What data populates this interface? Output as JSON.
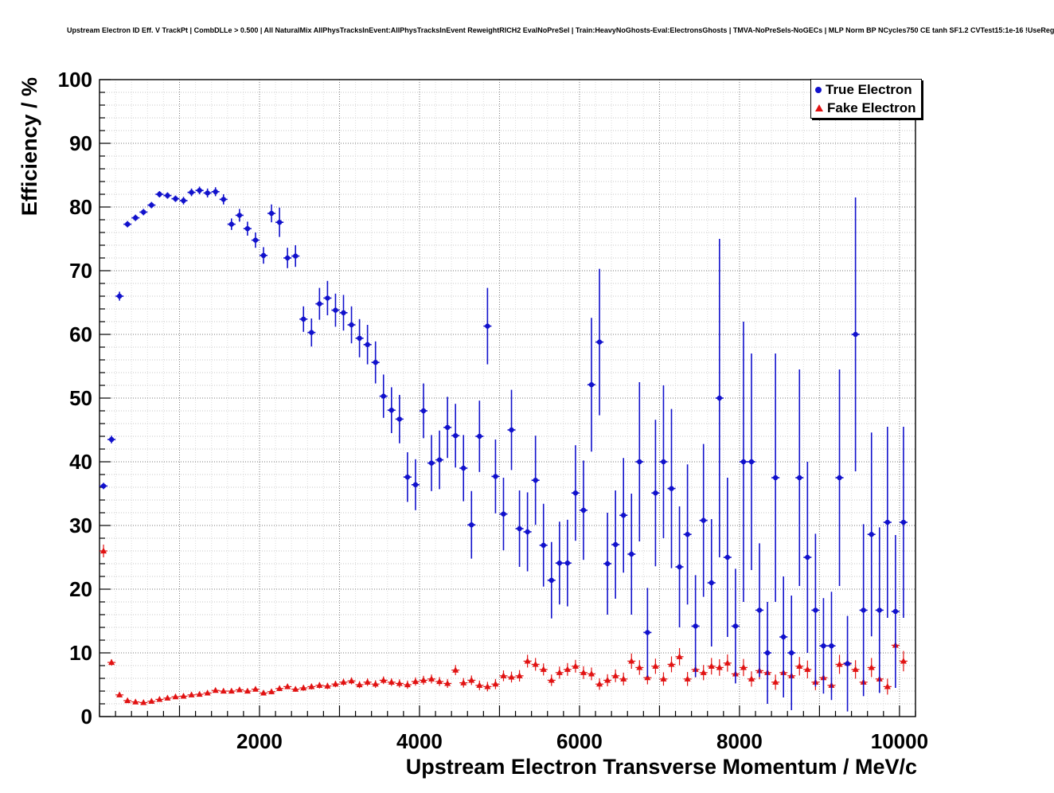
{
  "header": {
    "title": "Upstream Electron ID Eff. V TrackPt | CombDLLe > 0.500 | All NaturalMix AllPhysTracksInEvent:AllPhysTracksInEvent ReweightRICH2 EvalNoPreSel | Train:HeavyNoGhosts-Eval:ElectronsGhosts | TMVA-NoPreSels-NoGECs | MLP Norm BP NCycles750 CE tanh SF1.2 CVTest15:1e-16 !UseReg"
  },
  "chart_data": {
    "type": "scatter",
    "title": "Upstream Electron ID Eff. V TrackPt | CombDLLe > 0.500 | All NaturalMix AllPhysTracksInEvent:AllPhysTracksInEvent ReweightRICH2 EvalNoPreSel | Train:HeavyNoGhosts-Eval:ElectronsGhosts | TMVA-NoPreSels-NoGECs | MLP Norm BP NCycles750 CE tanh SF1.2 CVTest15:1e-16 !UseReg",
    "xlabel": "Upstream Electron Transverse Momentum / MeV/c",
    "ylabel": "Efficiency / %",
    "xlim": [
      0,
      10200
    ],
    "ylim": [
      0,
      100
    ],
    "xticks": [
      2000,
      4000,
      6000,
      8000,
      10000
    ],
    "yticks": [
      0,
      10,
      20,
      30,
      40,
      50,
      60,
      70,
      80,
      90,
      100
    ],
    "grid": true,
    "grid_style": "dotted",
    "legend_position": "top-right",
    "layout": {
      "x_minor": 200,
      "x_major": 1000,
      "y_minor": 2,
      "y_major": 10
    },
    "x": [
      50,
      150,
      250,
      350,
      450,
      550,
      650,
      750,
      850,
      950,
      1050,
      1150,
      1250,
      1350,
      1450,
      1550,
      1650,
      1750,
      1850,
      1950,
      2050,
      2150,
      2250,
      2350,
      2450,
      2550,
      2650,
      2750,
      2850,
      2950,
      3050,
      3150,
      3250,
      3350,
      3450,
      3550,
      3650,
      3750,
      3850,
      3950,
      4050,
      4150,
      4250,
      4350,
      4450,
      4550,
      4650,
      4750,
      4850,
      4950,
      5050,
      5150,
      5250,
      5350,
      5450,
      5550,
      5650,
      5750,
      5850,
      5950,
      6050,
      6150,
      6250,
      6350,
      6450,
      6550,
      6650,
      6750,
      6850,
      6950,
      7050,
      7150,
      7250,
      7350,
      7450,
      7550,
      7650,
      7750,
      7850,
      7950,
      8050,
      8150,
      8250,
      8350,
      8450,
      8550,
      8650,
      8750,
      8850,
      8950,
      9050,
      9150,
      9250,
      9350,
      9450,
      9550,
      9650,
      9750,
      9850,
      9950,
      10050
    ],
    "series": [
      {
        "name": "True Electron",
        "color": "#1111cc",
        "marker": "circle",
        "xerr": 50,
        "y": [
          36.2,
          43.5,
          66.0,
          77.3,
          78.3,
          79.2,
          80.3,
          82.0,
          81.8,
          81.3,
          81.0,
          82.3,
          82.6,
          82.2,
          82.4,
          81.2,
          77.3,
          78.7,
          76.6,
          74.8,
          72.4,
          79.0,
          77.6,
          72.0,
          72.3,
          62.4,
          60.3,
          64.8,
          65.7,
          63.8,
          63.4,
          61.5,
          59.4,
          58.4,
          55.6,
          50.3,
          48.1,
          46.7,
          37.6,
          36.4,
          48.0,
          39.8,
          40.3,
          45.4,
          44.1,
          39.0,
          30.1,
          44.0,
          61.3,
          37.7,
          31.8,
          45.0,
          29.5,
          29.0,
          37.1,
          26.9,
          21.4,
          24.1,
          24.1,
          35.1,
          32.4,
          52.1,
          58.8,
          24.0,
          27.0,
          31.6,
          25.5,
          40.0,
          13.2,
          35.1,
          40.0,
          35.8,
          23.5,
          28.6,
          14.2,
          30.8,
          21.0,
          50.0,
          25.0,
          14.2,
          40.0,
          40.0,
          16.7,
          10.0,
          37.5,
          12.5,
          10.0,
          37.5,
          25.0,
          16.7,
          11.1,
          11.1,
          37.5,
          8.3,
          60.0,
          16.7,
          28.6,
          16.7,
          30.5,
          16.5,
          30.5
        ],
        "yerr": [
          0.5,
          0.6,
          0.7,
          0.5,
          0.5,
          0.5,
          0.5,
          0.5,
          0.5,
          0.5,
          0.6,
          0.6,
          0.6,
          0.7,
          0.7,
          0.8,
          0.9,
          1.0,
          1.1,
          1.2,
          1.3,
          1.4,
          2.3,
          1.6,
          1.7,
          2.0,
          2.2,
          2.5,
          2.7,
          2.6,
          2.8,
          2.9,
          3.0,
          3.1,
          3.3,
          3.4,
          3.6,
          3.8,
          3.9,
          4.0,
          4.3,
          4.4,
          4.6,
          4.8,
          5.0,
          5.2,
          5.3,
          5.6,
          6.0,
          5.8,
          5.7,
          6.3,
          6.0,
          6.2,
          7.0,
          6.5,
          6.0,
          6.5,
          6.8,
          7.5,
          7.8,
          10.5,
          11.5,
          8.0,
          8.5,
          9.0,
          9.5,
          12.5,
          7.0,
          11.5,
          12.0,
          12.5,
          9.5,
          11.0,
          8.0,
          12.0,
          10.0,
          25.0,
          12.5,
          9.0,
          22.0,
          17.0,
          10.5,
          8.0,
          19.5,
          9.5,
          9.0,
          17.0,
          15.0,
          12.0,
          7.5,
          8.5,
          17.0,
          7.5,
          21.5,
          13.5,
          16.0,
          13.0,
          15.0,
          12.0,
          15.0
        ]
      },
      {
        "name": "Fake Electron",
        "color": "#e11212",
        "marker": "triangle",
        "xerr": 50,
        "y": [
          26.0,
          8.5,
          3.4,
          2.5,
          2.3,
          2.2,
          2.4,
          2.7,
          2.9,
          3.1,
          3.2,
          3.4,
          3.5,
          3.7,
          4.1,
          4.0,
          4.0,
          4.2,
          4.0,
          4.3,
          3.7,
          3.9,
          4.4,
          4.7,
          4.3,
          4.5,
          4.7,
          4.9,
          4.8,
          5.1,
          5.4,
          5.6,
          5.0,
          5.4,
          5.1,
          5.7,
          5.4,
          5.2,
          5.0,
          5.5,
          5.7,
          5.9,
          5.5,
          5.2,
          7.3,
          5.3,
          5.7,
          4.9,
          4.7,
          5.1,
          6.4,
          6.2,
          6.4,
          8.7,
          8.2,
          7.4,
          5.7,
          6.9,
          7.4,
          7.9,
          6.9,
          6.7,
          5.1,
          5.7,
          6.4,
          5.9,
          8.7,
          7.7,
          6.1,
          7.9,
          5.9,
          8.2,
          9.4,
          5.9,
          7.4,
          6.9,
          7.9,
          7.7,
          8.4,
          6.7,
          7.7,
          5.9,
          7.2,
          6.9,
          5.4,
          6.9,
          6.4,
          7.9,
          7.4,
          5.4,
          6.1,
          4.9,
          8.2,
          8.4,
          7.4,
          5.4,
          7.7,
          5.9,
          4.7,
          11.2,
          8.7
        ],
        "yerr": [
          1.0,
          0.5,
          0.25,
          0.2,
          0.2,
          0.2,
          0.2,
          0.2,
          0.2,
          0.2,
          0.25,
          0.25,
          0.25,
          0.3,
          0.3,
          0.3,
          0.3,
          0.35,
          0.35,
          0.35,
          0.35,
          0.4,
          0.4,
          0.4,
          0.4,
          0.45,
          0.45,
          0.5,
          0.5,
          0.5,
          0.55,
          0.55,
          0.55,
          0.6,
          0.6,
          0.6,
          0.6,
          0.65,
          0.65,
          0.65,
          0.7,
          0.7,
          0.7,
          0.7,
          0.8,
          0.75,
          0.75,
          0.75,
          0.75,
          0.8,
          0.85,
          0.85,
          0.9,
          1.0,
          1.0,
          0.95,
          0.9,
          0.95,
          1.0,
          1.0,
          1.0,
          1.0,
          0.9,
          0.95,
          1.0,
          1.0,
          1.2,
          1.15,
          1.05,
          1.2,
          1.05,
          1.25,
          1.35,
          1.1,
          1.25,
          1.2,
          1.3,
          1.3,
          1.35,
          1.25,
          1.35,
          1.2,
          1.35,
          1.3,
          1.2,
          1.35,
          1.3,
          1.45,
          1.4,
          1.25,
          1.3,
          1.2,
          1.5,
          1.55,
          1.45,
          1.3,
          1.5,
          1.35,
          1.25,
          1.8,
          1.6
        ]
      }
    ]
  }
}
